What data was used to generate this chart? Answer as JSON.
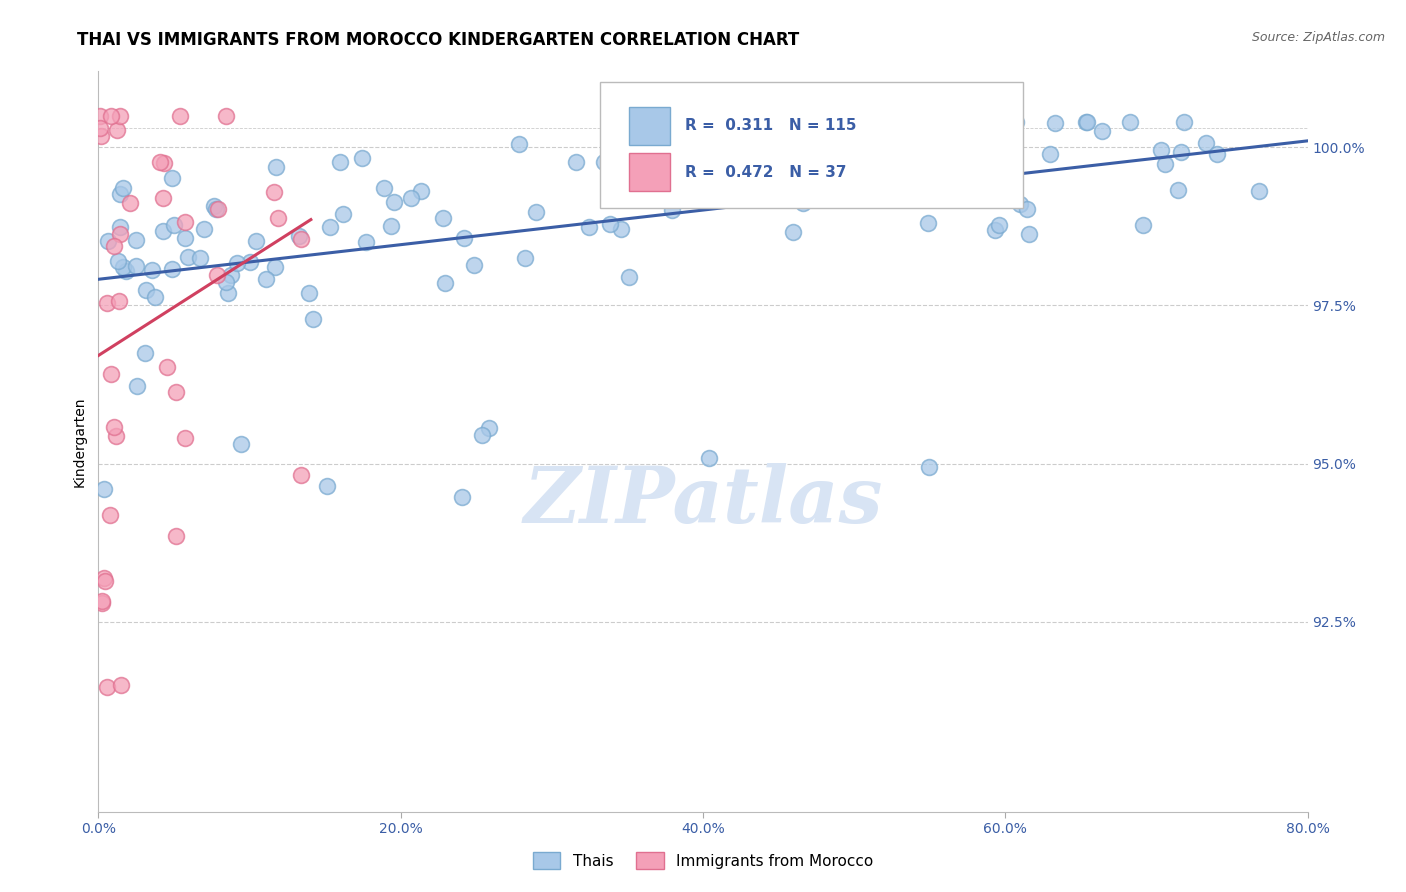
{
  "title": "THAI VS IMMIGRANTS FROM MOROCCO KINDERGARTEN CORRELATION CHART",
  "source_text": "Source: ZipAtlas.com",
  "ylabel": "Kindergarten",
  "xlim": [
    0.0,
    0.8
  ],
  "ylim": [
    0.895,
    1.012
  ],
  "xtick_labels": [
    "0.0%",
    "20.0%",
    "40.0%",
    "60.0%",
    "80.0%"
  ],
  "xtick_vals": [
    0.0,
    0.2,
    0.4,
    0.6,
    0.8
  ],
  "ytick_labels": [
    "92.5%",
    "95.0%",
    "97.5%",
    "100.0%"
  ],
  "ytick_vals": [
    0.925,
    0.95,
    0.975,
    1.0
  ],
  "blue_color": "#A8C8E8",
  "pink_color": "#F4A0B8",
  "blue_edge_color": "#7AAAD0",
  "pink_edge_color": "#E07090",
  "blue_line_color": "#3B5EA6",
  "pink_line_color": "#D04060",
  "R_blue": 0.311,
  "N_blue": 115,
  "R_pink": 0.472,
  "N_pink": 37,
  "watermark": "ZIPatlas",
  "watermark_color": "#D8E4F4",
  "title_fontsize": 12,
  "source_fontsize": 9,
  "axis_label_fontsize": 10,
  "tick_fontsize": 10,
  "right_tick_color": "#3B5EA6",
  "bottom_tick_color": "#3B5EA6"
}
